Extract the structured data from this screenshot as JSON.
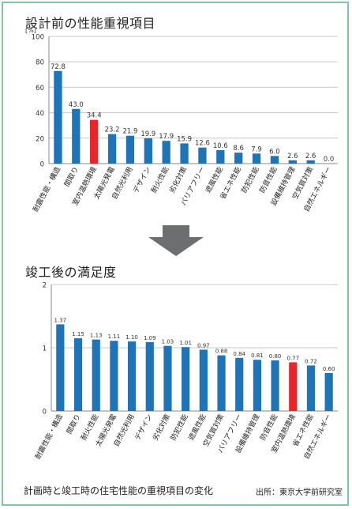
{
  "chart_data": [
    {
      "type": "bar",
      "title": "設計前の性能重視項目",
      "ylabel": "[%]",
      "ylim": [
        0,
        100
      ],
      "yticks": [
        "0",
        "20",
        "40",
        "60",
        "80",
        "100"
      ],
      "grid": true,
      "categories": [
        "耐震性能・構造",
        "間取り",
        "室内温熱環境",
        "太陽光発電",
        "自然光利用",
        "デザイン",
        "耐火性能",
        "劣化対策",
        "バリアフリー",
        "遮風性能",
        "省エネ性能",
        "防犯性能",
        "防音性能",
        "設備維持管理",
        "空気質対策",
        "自然エネルギー"
      ],
      "values": [
        72.8,
        43.0,
        34.4,
        23.2,
        21.9,
        19.9,
        17.9,
        15.9,
        12.6,
        10.6,
        8.6,
        7.9,
        6.0,
        2.6,
        2.6,
        0.0
      ],
      "value_labels": [
        "72.8",
        "43.0",
        "34.4",
        "23.2",
        "21.9",
        "19.9",
        "17.9",
        "15.9",
        "12.6",
        "10.6",
        "8.6",
        "7.9",
        "6.0",
        "2.6",
        "2.6",
        "0.0"
      ],
      "highlight_index": 2,
      "bar_color": "#1f74b8",
      "highlight_color": "#e8262a"
    },
    {
      "type": "bar",
      "title": "竣工後の満足度",
      "ylabel": "",
      "ylim": [
        0,
        2
      ],
      "yticks": [
        "0",
        "1",
        "2"
      ],
      "grid": true,
      "categories": [
        "耐震性能・構造",
        "間取り",
        "耐火性能",
        "太陽光発電",
        "自然光利用",
        "デザイン",
        "劣化対策",
        "防犯性能",
        "遮風性能",
        "空気質対策",
        "バリアフリー",
        "設備維持管理",
        "防音性能",
        "室内温熱環境",
        "省エネ性能",
        "自然エネルギー"
      ],
      "values": [
        1.37,
        1.15,
        1.13,
        1.11,
        1.1,
        1.09,
        1.03,
        1.01,
        0.97,
        0.88,
        0.84,
        0.81,
        0.8,
        0.77,
        0.72,
        0.6
      ],
      "value_labels": [
        "1.37",
        "1.15",
        "1.13",
        "1.11",
        "1.10",
        "1.09",
        "1.03",
        "1.01",
        "0.97",
        "0.88",
        "0.84",
        "0.81",
        "0.80",
        "0.77",
        "0.72",
        "0.60"
      ],
      "highlight_index": 13,
      "bar_color": "#1f74b8",
      "highlight_color": "#e8262a"
    }
  ],
  "caption": "計画時と竣工時の住宅性能の重視項目の変化",
  "source": "出所：東京大学前研究室",
  "arrow_color": "#6d6e70"
}
